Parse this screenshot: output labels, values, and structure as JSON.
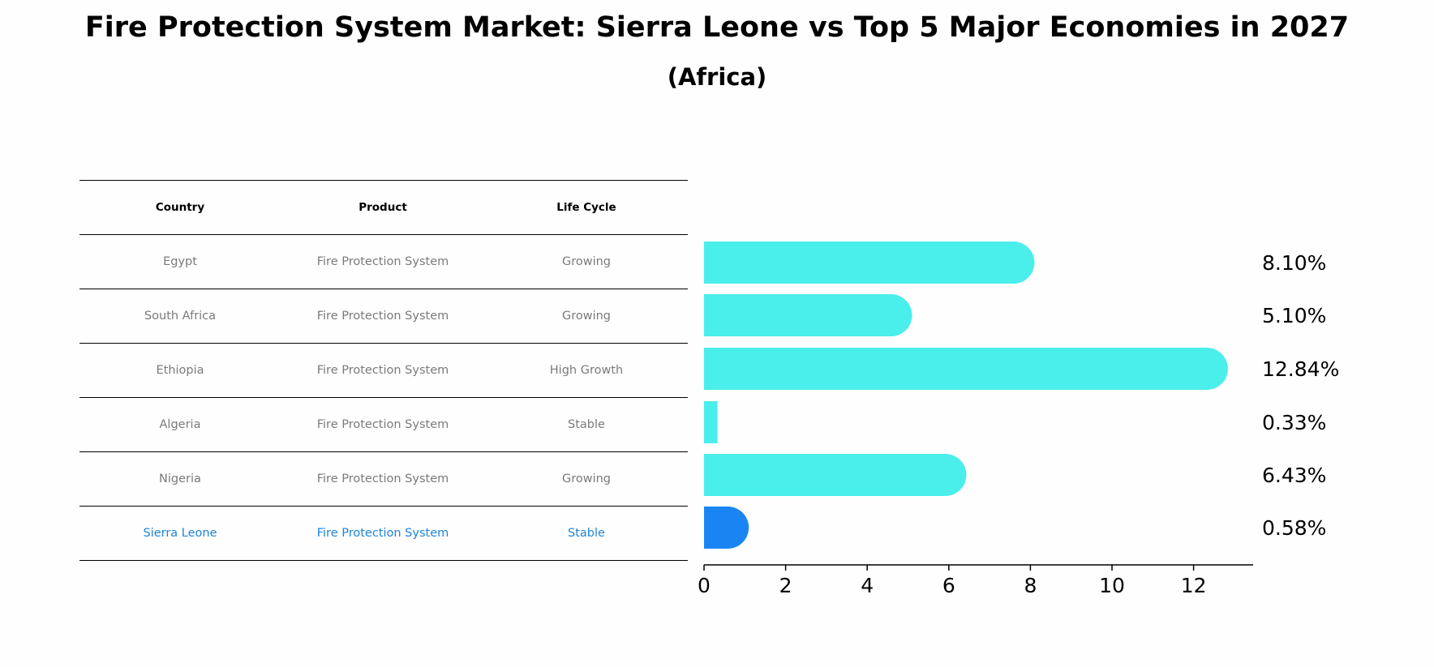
{
  "title": "Fire Protection System Market: Sierra Leone vs Top 5 Major Economies in 2027",
  "subtitle": "(Africa)",
  "table": {
    "headers": [
      "Country",
      "Product",
      "Life Cycle"
    ],
    "rows": [
      {
        "country": "Egypt",
        "product": "Fire Protection System",
        "life_cycle": "Growing"
      },
      {
        "country": "South Africa",
        "product": "Fire Protection System",
        "life_cycle": "Growing"
      },
      {
        "country": "Ethiopia",
        "product": "Fire Protection System",
        "life_cycle": "High Growth"
      },
      {
        "country": "Algeria",
        "product": "Fire Protection System",
        "life_cycle": "Stable"
      },
      {
        "country": "Nigeria",
        "product": "Fire Protection System",
        "life_cycle": "Growing"
      },
      {
        "country": "Sierra Leone",
        "product": "Fire Protection System",
        "life_cycle": "Stable"
      }
    ]
  },
  "colors": {
    "bar": "#4aeeeb",
    "highlight_bar": "#1a85f2",
    "highlight_text": "#1f84d8",
    "row_text": "#7a7a7a"
  },
  "chart_data": {
    "type": "bar",
    "orientation": "horizontal",
    "categories": [
      "Egypt",
      "South Africa",
      "Ethiopia",
      "Algeria",
      "Nigeria",
      "Sierra Leone"
    ],
    "values": [
      8.1,
      5.1,
      12.84,
      0.33,
      6.43,
      0.58
    ],
    "value_labels": [
      "8.10%",
      "5.10%",
      "12.84%",
      "0.33%",
      "6.43%",
      "0.58%"
    ],
    "highlight": "Sierra Leone",
    "xlim": [
      0,
      13.5
    ],
    "xticks": [
      0,
      2,
      4,
      6,
      8,
      10,
      12
    ],
    "grid": false
  }
}
